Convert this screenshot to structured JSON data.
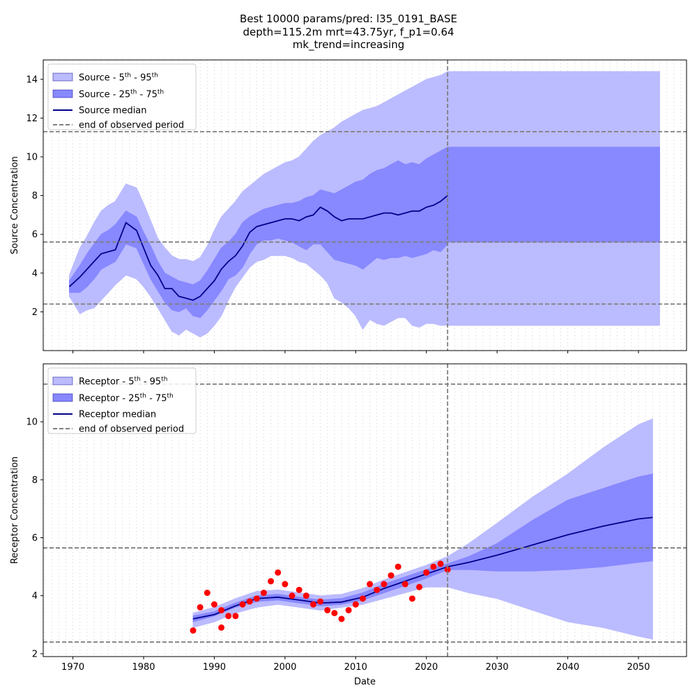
{
  "title": {
    "line1": "Best 10000 params/pred: l35_0191_BASE",
    "line2": "depth=115.2m mrt=43.75yr, f_p1=0.64",
    "line3": "mk_trend=increasing"
  },
  "colors": {
    "band_outer": "#bbbbff",
    "band_inner": "#8888ff",
    "median": "#00008b",
    "reference": "#7f7f7f",
    "observations": "#ff0000",
    "minor_grid": "#d0d0d0"
  },
  "chart_data": [
    {
      "type": "area",
      "ylabel": "Source Concentration",
      "xlabel": "",
      "xlim": [
        1965.8,
        2056.8
      ],
      "ylim": [
        0.0,
        15.0
      ],
      "x_ticks": [
        1970,
        1980,
        1990,
        2000,
        2010,
        2020,
        2030,
        2040,
        2050
      ],
      "x_tick_labels": [
        "",
        "",
        "",
        "",
        "",
        "",
        "",
        "",
        ""
      ],
      "y_ticks": [
        2,
        4,
        6,
        8,
        10,
        12,
        14
      ],
      "y_tick_labels": [
        "2",
        "4",
        "6",
        "8",
        "10",
        "12",
        "14"
      ],
      "end_of_observed": 2023.0,
      "hlines": [
        2.4,
        5.6,
        11.3
      ],
      "legend_position": "top-left",
      "legend": [
        {
          "kind": "outer",
          "prefix": "Source - 5",
          "sup1": "th",
          "mid": " - 95",
          "sup2": "th"
        },
        {
          "kind": "inner",
          "prefix": "Source - 25",
          "sup1": "th",
          "mid": " - 75",
          "sup2": "th"
        },
        {
          "kind": "median",
          "prefix": "Source median",
          "sup1": "",
          "mid": "",
          "sup2": ""
        },
        {
          "kind": "dashed",
          "prefix": "end of observed period",
          "sup1": "",
          "mid": "",
          "sup2": ""
        }
      ],
      "series_x": [
        1969.5,
        1971,
        1972,
        1973,
        1974,
        1975,
        1976,
        1977.5,
        1979,
        1980,
        1981,
        1982,
        1983,
        1984,
        1985,
        1986,
        1987,
        1988,
        1989,
        1990,
        1991,
        1992,
        1993,
        1994,
        1995,
        1996,
        1997,
        1998,
        1999,
        2000,
        2001,
        2002,
        2003,
        2004,
        2005,
        2006,
        2007,
        2008,
        2009,
        2010,
        2011,
        2012,
        2013,
        2014,
        2015,
        2016,
        2017,
        2018,
        2019,
        2020,
        2021,
        2022,
        2023
      ],
      "p5": [
        2.8,
        1.9,
        2.1,
        2.2,
        2.6,
        3.0,
        3.4,
        3.9,
        3.7,
        3.3,
        2.8,
        2.2,
        1.6,
        1.0,
        0.8,
        1.1,
        0.9,
        0.7,
        0.9,
        1.3,
        1.8,
        2.6,
        3.3,
        3.8,
        4.3,
        4.6,
        4.7,
        4.9,
        4.9,
        4.9,
        4.8,
        4.6,
        4.5,
        4.2,
        3.9,
        3.5,
        2.7,
        2.5,
        2.2,
        1.8,
        1.1,
        1.6,
        1.4,
        1.3,
        1.5,
        1.7,
        1.7,
        1.3,
        1.2,
        1.4,
        1.4,
        1.3,
        1.3
      ],
      "p25": [
        3.0,
        3.0,
        3.3,
        3.7,
        4.2,
        4.4,
        4.6,
        5.5,
        5.3,
        4.5,
        3.7,
        3.1,
        2.5,
        2.1,
        2.0,
        2.2,
        1.8,
        1.7,
        2.1,
        2.6,
        3.1,
        3.7,
        3.9,
        4.3,
        5.0,
        5.5,
        5.7,
        5.7,
        5.8,
        5.7,
        5.6,
        5.4,
        5.2,
        5.5,
        5.5,
        5.1,
        4.7,
        4.6,
        4.5,
        4.4,
        4.2,
        4.5,
        4.8,
        4.7,
        4.8,
        4.8,
        4.9,
        4.8,
        4.9,
        5.0,
        5.2,
        5.1,
        5.5
      ],
      "median": [
        3.3,
        3.8,
        4.2,
        4.6,
        5.0,
        5.1,
        5.2,
        6.6,
        6.2,
        5.3,
        4.4,
        3.9,
        3.2,
        3.2,
        2.8,
        2.7,
        2.6,
        2.8,
        3.2,
        3.6,
        4.2,
        4.6,
        4.9,
        5.4,
        6.1,
        6.4,
        6.5,
        6.6,
        6.7,
        6.8,
        6.8,
        6.7,
        6.9,
        7.0,
        7.4,
        7.2,
        6.9,
        6.7,
        6.8,
        6.8,
        6.8,
        6.9,
        7.0,
        7.1,
        7.1,
        7.0,
        7.1,
        7.2,
        7.2,
        7.4,
        7.5,
        7.7,
        8.0
      ],
      "p75": [
        3.6,
        4.4,
        5.0,
        5.5,
        6.0,
        6.2,
        6.5,
        7.2,
        6.9,
        6.1,
        5.4,
        4.6,
        4.0,
        3.8,
        3.6,
        3.5,
        3.4,
        3.6,
        4.1,
        4.7,
        5.3,
        5.6,
        6.0,
        6.6,
        6.9,
        7.1,
        7.3,
        7.4,
        7.5,
        7.6,
        7.6,
        7.7,
        7.9,
        8.0,
        8.3,
        8.2,
        8.1,
        8.3,
        8.5,
        8.7,
        8.8,
        9.1,
        9.3,
        9.4,
        9.6,
        9.8,
        9.6,
        9.7,
        9.6,
        9.9,
        10.1,
        10.3,
        10.5
      ],
      "p95": [
        3.9,
        5.3,
        5.9,
        6.6,
        7.2,
        7.5,
        7.7,
        8.6,
        8.4,
        7.6,
        6.7,
        5.8,
        5.3,
        4.9,
        4.7,
        4.7,
        4.6,
        4.8,
        5.4,
        6.2,
        6.9,
        7.3,
        7.7,
        8.2,
        8.5,
        8.8,
        9.1,
        9.3,
        9.5,
        9.7,
        9.8,
        10.0,
        10.4,
        10.8,
        11.1,
        11.3,
        11.5,
        11.8,
        12.0,
        12.2,
        12.4,
        12.5,
        12.6,
        12.8,
        13.0,
        13.2,
        13.4,
        13.6,
        13.8,
        14.0,
        14.1,
        14.2,
        14.4
      ],
      "projection": {
        "x_start": 2023.0,
        "x_end": 2053.0,
        "p5": 1.3,
        "p25": 5.6,
        "p75": 10.5,
        "p95": 14.4
      }
    },
    {
      "type": "area",
      "ylabel": "Receptor Concentration",
      "xlabel": "Date",
      "xlim": [
        1965.8,
        2056.8
      ],
      "ylim": [
        1.9,
        12.0
      ],
      "x_ticks": [
        1970,
        1980,
        1990,
        2000,
        2010,
        2020,
        2030,
        2040,
        2050
      ],
      "x_tick_labels": [
        "1970",
        "1980",
        "1990",
        "2000",
        "2010",
        "2020",
        "2030",
        "2040",
        "2050"
      ],
      "y_ticks": [
        2,
        4,
        6,
        8,
        10
      ],
      "y_tick_labels": [
        "2",
        "4",
        "6",
        "8",
        "10"
      ],
      "end_of_observed": 2023.0,
      "hlines": [
        2.4,
        5.65,
        11.3
      ],
      "legend_position": "top-left",
      "legend": [
        {
          "kind": "outer",
          "prefix": "Receptor - 5",
          "sup1": "th",
          "mid": " - 95",
          "sup2": "th"
        },
        {
          "kind": "inner",
          "prefix": "Receptor - 25",
          "sup1": "th",
          "mid": " - 75",
          "sup2": "th"
        },
        {
          "kind": "median",
          "prefix": "Receptor median",
          "sup1": "",
          "mid": "",
          "sup2": ""
        },
        {
          "kind": "dashed",
          "prefix": "end of observed period",
          "sup1": "",
          "mid": "",
          "sup2": ""
        }
      ],
      "series_x": [
        1987,
        1990,
        1993,
        1996,
        1999,
        2002,
        2005,
        2008,
        2011,
        2014,
        2017,
        2020,
        2023,
        2026,
        2030,
        2035,
        2040,
        2045,
        2050,
        2052
      ],
      "p5": [
        2.9,
        3.1,
        3.4,
        3.6,
        3.7,
        3.6,
        3.5,
        3.6,
        3.7,
        3.9,
        4.1,
        4.3,
        4.3,
        4.1,
        3.9,
        3.5,
        3.1,
        2.9,
        2.6,
        2.5
      ],
      "p25": [
        3.1,
        3.3,
        3.6,
        3.8,
        3.85,
        3.75,
        3.65,
        3.7,
        3.85,
        4.1,
        4.35,
        4.6,
        4.9,
        4.9,
        4.85,
        4.85,
        4.9,
        5.0,
        5.15,
        5.2
      ],
      "median": [
        3.2,
        3.35,
        3.65,
        3.9,
        3.95,
        3.85,
        3.75,
        3.78,
        3.95,
        4.25,
        4.5,
        4.75,
        5.0,
        5.15,
        5.4,
        5.75,
        6.1,
        6.4,
        6.65,
        6.7
      ],
      "p75": [
        3.3,
        3.45,
        3.75,
        4.0,
        4.05,
        3.95,
        3.85,
        3.9,
        4.1,
        4.4,
        4.65,
        4.9,
        5.1,
        5.35,
        5.8,
        6.6,
        7.3,
        7.7,
        8.1,
        8.2
      ],
      "p95": [
        3.4,
        3.6,
        3.9,
        4.15,
        4.2,
        4.1,
        4.0,
        4.05,
        4.25,
        4.55,
        4.8,
        5.05,
        5.35,
        5.8,
        6.5,
        7.4,
        8.2,
        9.1,
        9.9,
        10.1
      ],
      "observations": {
        "x": [
          1987,
          1988,
          1989,
          1990,
          1991,
          1991,
          1992,
          1993,
          1994,
          1995,
          1996,
          1997,
          1998,
          1999,
          2000,
          2001,
          2002,
          2003,
          2004,
          2005,
          2006,
          2007,
          2008,
          2009,
          2010,
          2011,
          2012,
          2013,
          2014,
          2015,
          2016,
          2017,
          2018,
          2019,
          2020,
          2021,
          2022,
          2023
        ],
        "y": [
          2.8,
          3.6,
          4.1,
          3.7,
          3.5,
          2.9,
          3.3,
          3.3,
          3.7,
          3.8,
          3.9,
          4.1,
          4.5,
          4.8,
          4.4,
          4.0,
          4.2,
          4.0,
          3.7,
          3.8,
          3.5,
          3.4,
          3.2,
          3.5,
          3.7,
          3.9,
          4.4,
          4.2,
          4.4,
          4.7,
          5.0,
          4.4,
          3.9,
          4.3,
          4.8,
          5.0,
          5.1,
          4.9
        ]
      }
    }
  ]
}
